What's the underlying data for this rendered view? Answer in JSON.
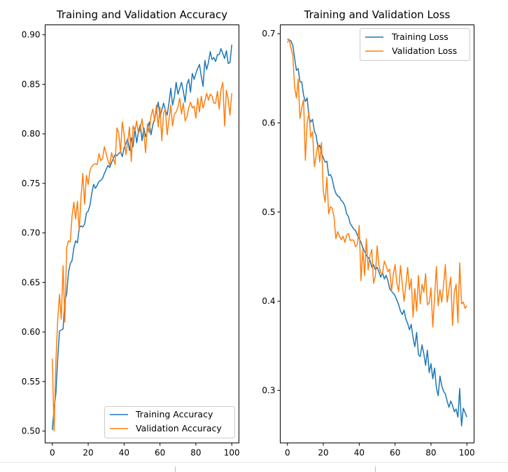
{
  "colors": {
    "training": "#1f77b4",
    "validation": "#ff7f0e"
  },
  "chart_data": [
    {
      "type": "line",
      "title": "Training and Validation Accuracy",
      "xlabel": "",
      "ylabel": "",
      "xlim": [
        -4,
        104
      ],
      "ylim": [
        0.488,
        0.91
      ],
      "xticks": [
        0,
        20,
        40,
        60,
        80,
        100
      ],
      "yticks": [
        0.5,
        0.55,
        0.6,
        0.65,
        0.7,
        0.75,
        0.8,
        0.85,
        0.9
      ],
      "ytick_decimals": 2,
      "legend_position": "lower-right",
      "series": [
        {
          "name": "Training Accuracy",
          "color": "#1f77b4",
          "values": [
            0.501,
            0.523,
            0.538,
            0.573,
            0.601,
            0.602,
            0.603,
            0.632,
            0.638,
            0.66,
            0.669,
            0.672,
            0.685,
            0.692,
            0.69,
            0.705,
            0.707,
            0.706,
            0.709,
            0.72,
            0.722,
            0.728,
            0.74,
            0.749,
            0.745,
            0.748,
            0.752,
            0.753,
            0.755,
            0.76,
            0.764,
            0.768,
            0.766,
            0.771,
            0.775,
            0.779,
            0.778,
            0.78,
            0.782,
            0.777,
            0.786,
            0.79,
            0.795,
            0.783,
            0.796,
            0.787,
            0.806,
            0.791,
            0.802,
            0.809,
            0.793,
            0.806,
            0.797,
            0.803,
            0.812,
            0.799,
            0.809,
            0.815,
            0.823,
            0.832,
            0.817,
            0.824,
            0.831,
            0.824,
            0.819,
            0.831,
            0.846,
            0.829,
            0.837,
            0.852,
            0.84,
            0.846,
            0.852,
            0.843,
            0.832,
            0.85,
            0.855,
            0.842,
            0.861,
            0.855,
            0.861,
            0.866,
            0.87,
            0.858,
            0.848,
            0.874,
            0.865,
            0.872,
            0.883,
            0.875,
            0.877,
            0.873,
            0.88,
            0.88,
            0.886,
            0.881,
            0.876,
            0.884,
            0.871,
            0.872,
            0.89
          ]
        },
        {
          "name": "Validation Accuracy",
          "color": "#ff7f0e",
          "values": [
            0.573,
            0.5,
            0.57,
            0.612,
            0.638,
            0.613,
            0.667,
            0.61,
            0.685,
            0.692,
            0.691,
            0.717,
            0.731,
            0.714,
            0.732,
            0.702,
            0.736,
            0.76,
            0.729,
            0.758,
            0.749,
            0.763,
            0.767,
            0.769,
            0.77,
            0.769,
            0.78,
            0.773,
            0.775,
            0.787,
            0.78,
            0.773,
            0.768,
            0.781,
            0.775,
            0.769,
            0.806,
            0.801,
            0.781,
            0.812,
            0.799,
            0.779,
            0.791,
            0.807,
            0.772,
            0.808,
            0.803,
            0.813,
            0.8,
            0.805,
            0.815,
            0.8,
            0.781,
            0.81,
            0.801,
            0.818,
            0.825,
            0.813,
            0.829,
            0.807,
            0.827,
            0.793,
            0.821,
            0.825,
            0.799,
            0.814,
            0.829,
            0.808,
            0.82,
            0.822,
            0.827,
            0.836,
            0.82,
            0.831,
            0.813,
            0.817,
            0.826,
            0.832,
            0.826,
            0.828,
            0.816,
            0.836,
            0.822,
            0.838,
            0.826,
            0.833,
            0.841,
            0.834,
            0.84,
            0.838,
            0.831,
            0.831,
            0.843,
            0.825,
            0.845,
            0.852,
            0.808,
            0.844,
            0.835,
            0.819,
            0.841
          ]
        }
      ]
    },
    {
      "type": "line",
      "title": "Training and Validation Loss",
      "xlabel": "",
      "ylabel": "",
      "xlim": [
        -4,
        104
      ],
      "ylim": [
        0.241,
        0.71
      ],
      "xticks": [
        0,
        20,
        40,
        60,
        80,
        100
      ],
      "yticks": [
        0.3,
        0.4,
        0.5,
        0.6,
        0.7
      ],
      "ytick_decimals": 1,
      "legend_position": "upper-right",
      "series": [
        {
          "name": "Training Loss",
          "color": "#1f77b4",
          "values": [
            0.694,
            0.693,
            0.692,
            0.687,
            0.673,
            0.659,
            0.661,
            0.646,
            0.646,
            0.631,
            0.624,
            0.628,
            0.607,
            0.601,
            0.604,
            0.591,
            0.586,
            0.572,
            0.575,
            0.566,
            0.561,
            0.556,
            0.557,
            0.541,
            0.542,
            0.537,
            0.527,
            0.521,
            0.518,
            0.517,
            0.513,
            0.511,
            0.507,
            0.498,
            0.495,
            0.487,
            0.484,
            0.481,
            0.479,
            0.474,
            0.47,
            0.466,
            0.46,
            0.456,
            0.451,
            0.449,
            0.446,
            0.438,
            0.441,
            0.435,
            0.438,
            0.433,
            0.427,
            0.432,
            0.425,
            0.429,
            0.423,
            0.414,
            0.411,
            0.409,
            0.406,
            0.401,
            0.396,
            0.389,
            0.385,
            0.39,
            0.38,
            0.375,
            0.368,
            0.374,
            0.359,
            0.349,
            0.365,
            0.34,
            0.338,
            0.351,
            0.341,
            0.328,
            0.345,
            0.32,
            0.33,
            0.313,
            0.325,
            0.303,
            0.294,
            0.316,
            0.305,
            0.299,
            0.296,
            0.288,
            0.281,
            0.288,
            0.283,
            0.276,
            0.279,
            0.27,
            0.302,
            0.26,
            0.28,
            0.275,
            0.27
          ]
        },
        {
          "name": "Validation Loss",
          "color": "#ff7f0e",
          "values": [
            0.69,
            0.694,
            0.684,
            0.676,
            0.64,
            0.628,
            0.649,
            0.605,
            0.617,
            0.626,
            0.558,
            0.6,
            0.612,
            0.584,
            0.59,
            0.551,
            0.563,
            0.577,
            0.556,
            0.578,
            0.523,
            0.511,
            0.539,
            0.498,
            0.506,
            0.504,
            0.494,
            0.47,
            0.478,
            0.473,
            0.469,
            0.473,
            0.466,
            0.474,
            0.476,
            0.468,
            0.469,
            0.468,
            0.461,
            0.464,
            0.485,
            0.423,
            0.458,
            0.429,
            0.47,
            0.435,
            0.451,
            0.458,
            0.42,
            0.428,
            0.462,
            0.44,
            0.432,
            0.431,
            0.445,
            0.44,
            0.433,
            0.436,
            0.411,
            0.43,
            0.441,
            0.42,
            0.411,
            0.44,
            0.419,
            0.4,
            0.418,
            0.438,
            0.413,
            0.425,
            0.382,
            0.414,
            0.389,
            0.429,
            0.397,
            0.419,
            0.41,
            0.431,
            0.396,
            0.398,
            0.415,
            0.371,
            0.404,
            0.439,
            0.395,
            0.413,
            0.399,
            0.418,
            0.441,
            0.399,
            0.413,
            0.427,
            0.373,
            0.41,
            0.419,
            0.376,
            0.443,
            0.397,
            0.399,
            0.392,
            0.395
          ]
        }
      ]
    }
  ]
}
